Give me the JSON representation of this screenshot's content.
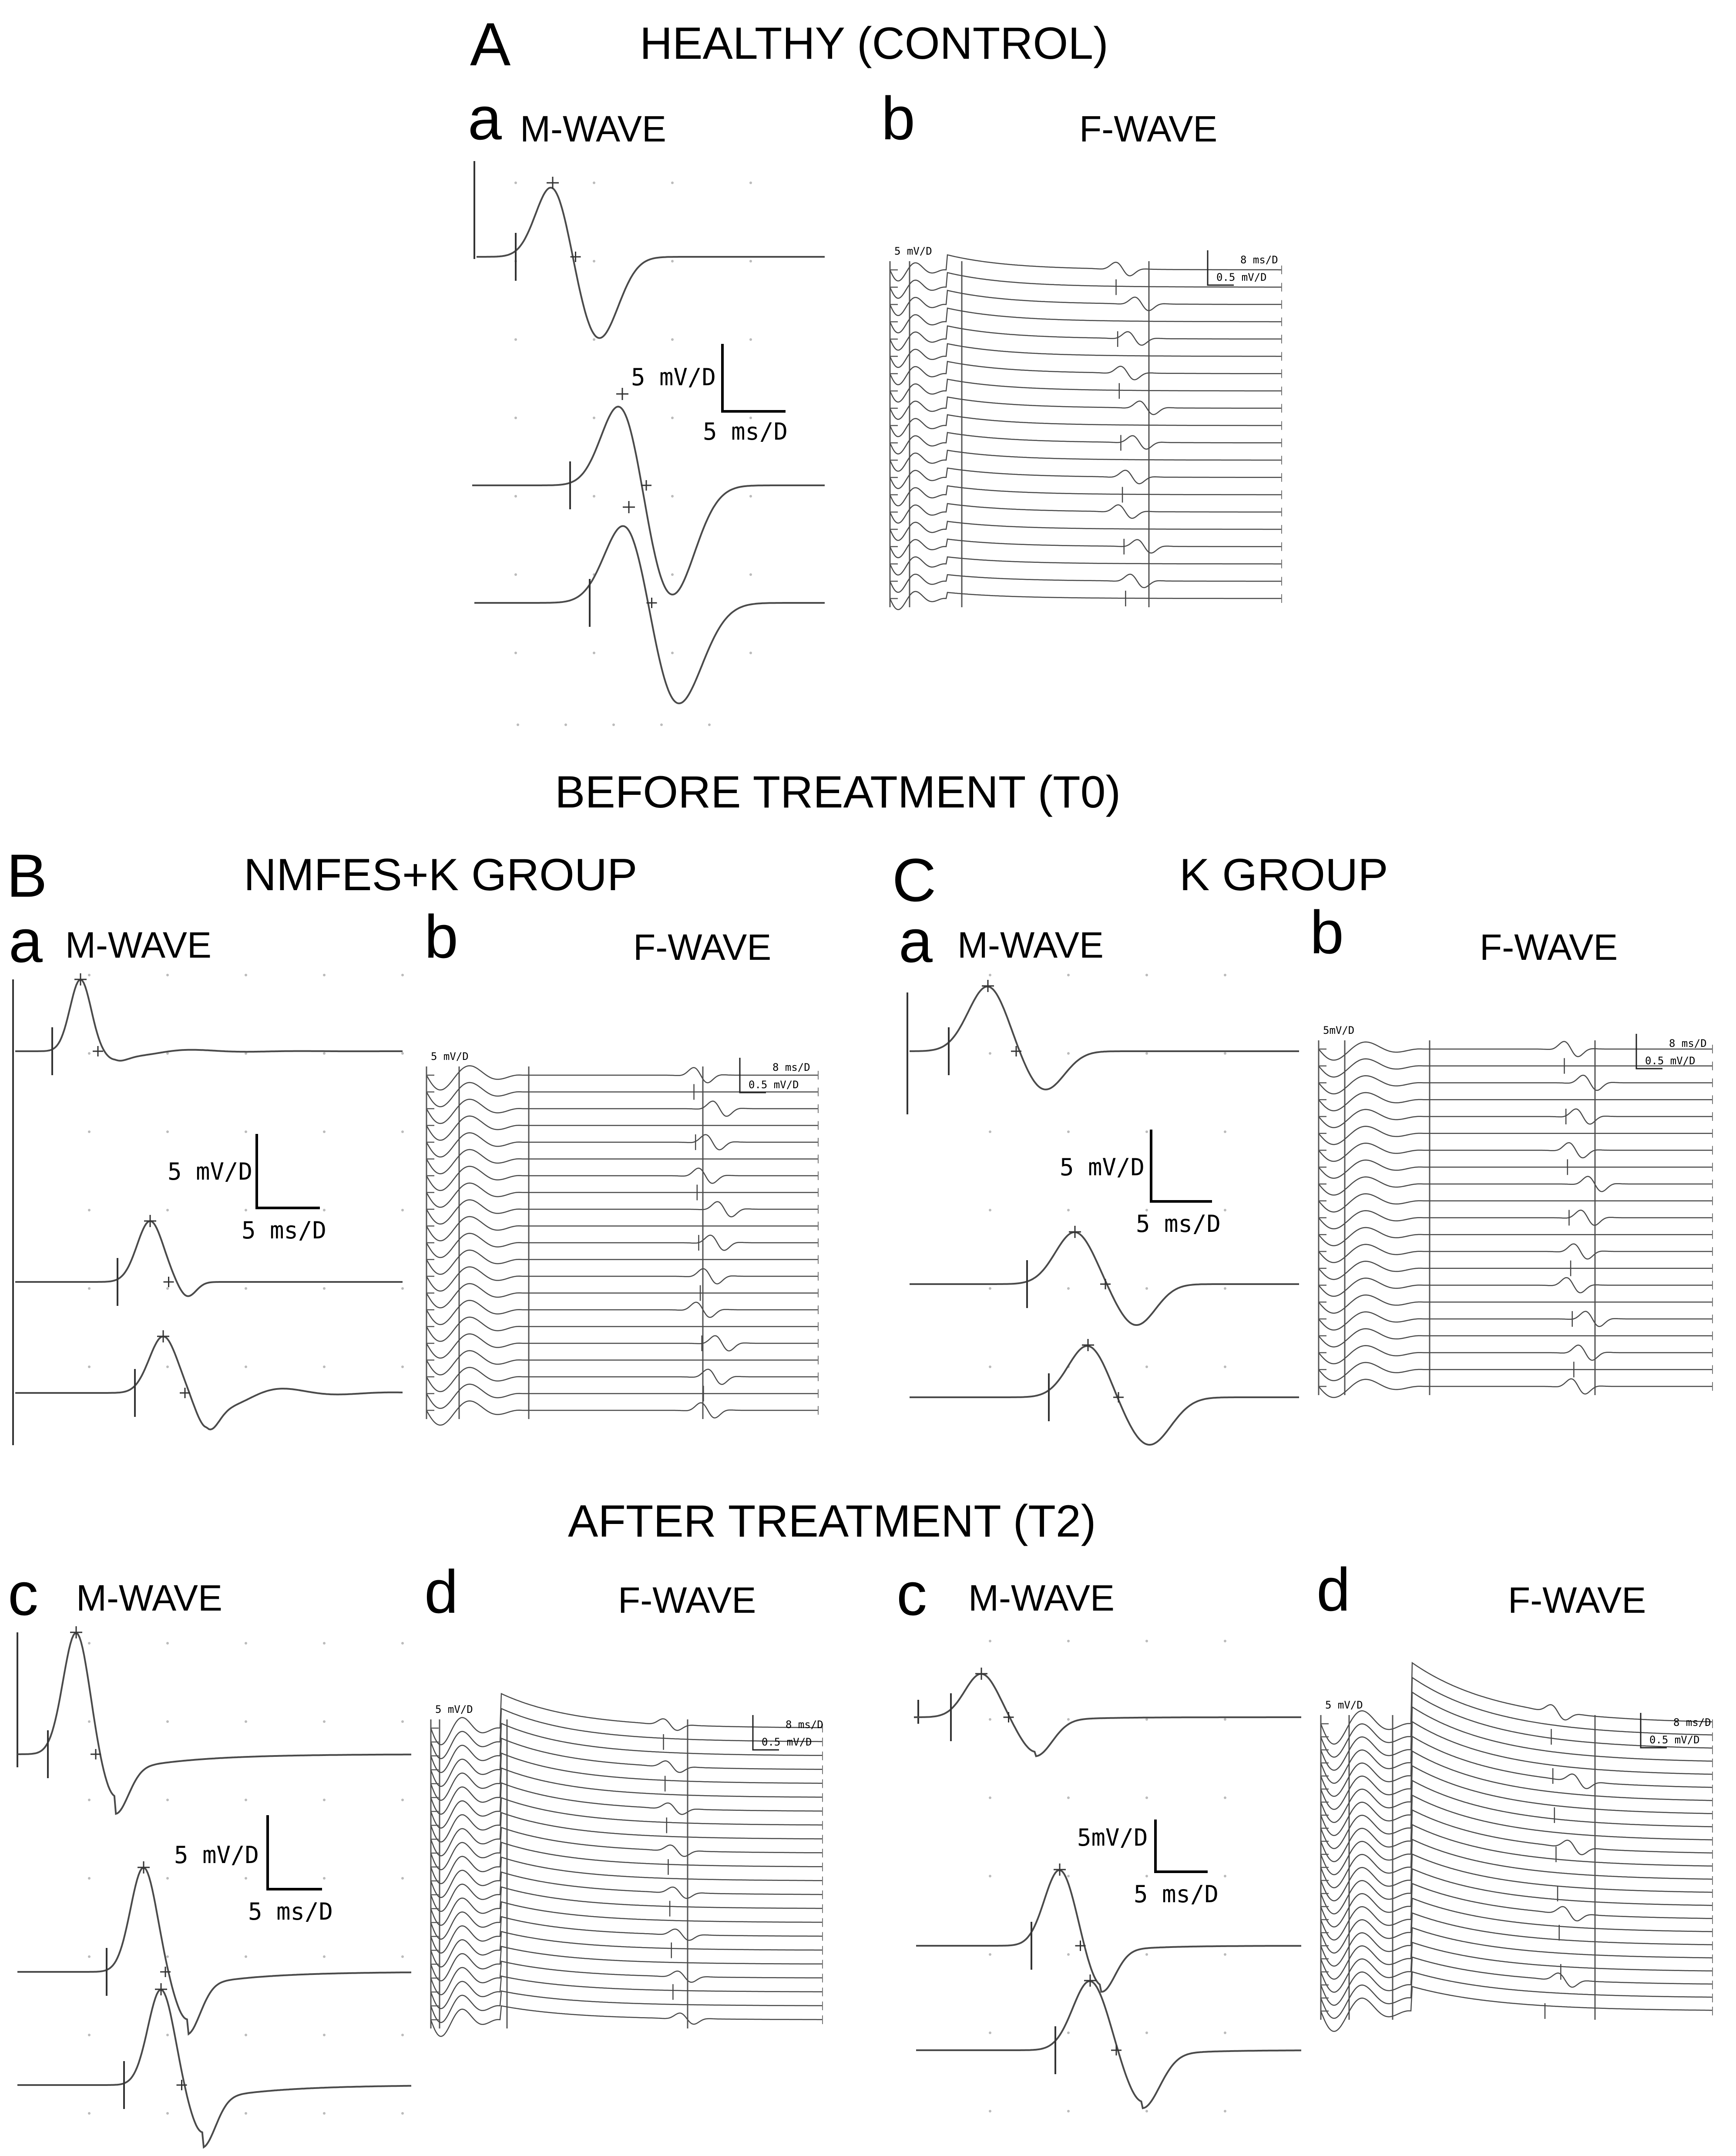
{
  "figure": {
    "section_A": {
      "letter": "A",
      "title": "HEALTHY (CONTROL)"
    },
    "title_T0": "BEFORE TREATMENT (T0)",
    "title_T2": "AFTER TREATMENT (T2)",
    "section_B": {
      "letter": "B",
      "title": "NMFES+K GROUP"
    },
    "section_C": {
      "letter": "C",
      "title": "K GROUP"
    },
    "labels": {
      "a": "a",
      "b": "b",
      "c": "c",
      "d": "d",
      "m_wave": "M-WAVE",
      "f_wave": "F-WAVE"
    },
    "scales": {
      "amp_5mV": "5 mV/D",
      "amp_5mV_alt": "5mV/D",
      "time_5ms": "5 ms/D",
      "f_time": "8 ms/D",
      "f_amp": "0.5 mV/D",
      "f_amp_alt": "0.5 mV/D",
      "f_sweep_5mV": "5 mV/D",
      "f_sweep_5mV_alt": "5mV/D"
    }
  },
  "colors": {
    "trace": "#4a4a4a",
    "cursor": "#333333",
    "grid_dot": "#bbbbbb",
    "text": "#000000"
  }
}
